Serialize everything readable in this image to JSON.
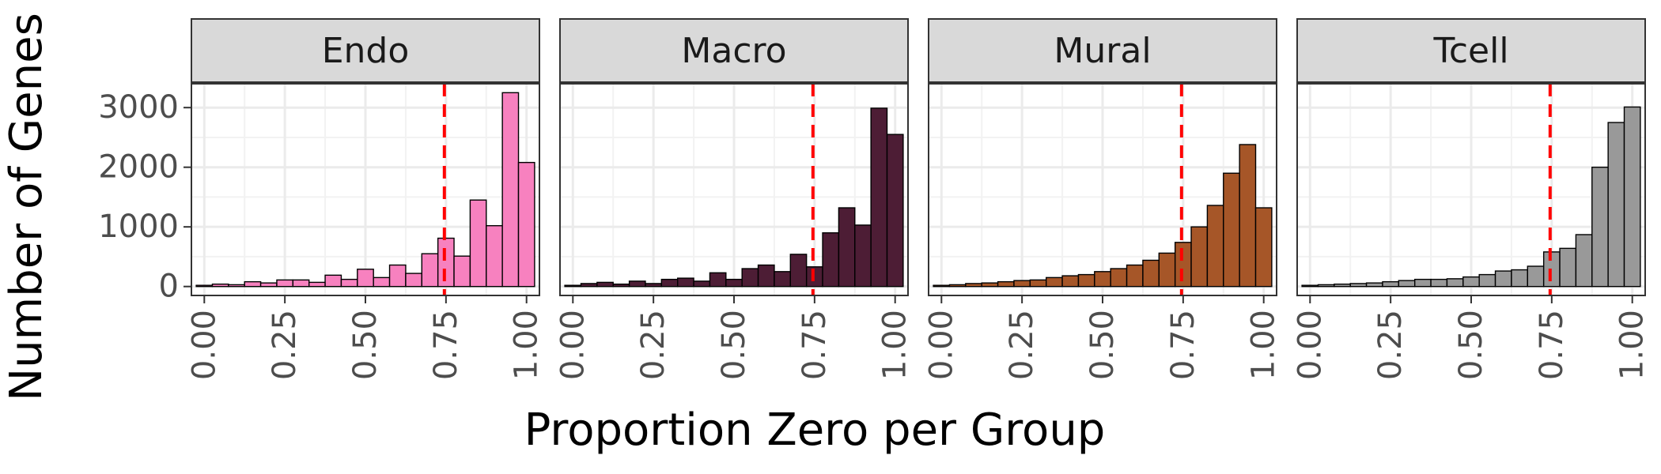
{
  "chart_data": {
    "type": "bar",
    "subtype": "faceted-histogram",
    "xlabel": "Proportion Zero per Group",
    "ylabel": "Number of Genes",
    "x_ticks": [
      "0.00",
      "0.25",
      "0.50",
      "0.75",
      "1.00"
    ],
    "y_ticks": [
      "0",
      "1000",
      "2000",
      "3000"
    ],
    "xlim": [
      -0.04,
      1.04
    ],
    "ylim": [
      -150,
      3400
    ],
    "bin_width": 0.05,
    "bin_centers": [
      0.0,
      0.05,
      0.1,
      0.15,
      0.2,
      0.25,
      0.3,
      0.35,
      0.4,
      0.45,
      0.5,
      0.55,
      0.6,
      0.65,
      0.7,
      0.75,
      0.8,
      0.85,
      0.9,
      0.95,
      1.0
    ],
    "threshold_line": {
      "x": 0.745,
      "color": "#ff0000",
      "style": "dashed"
    },
    "grid": true,
    "legend": "none",
    "panels": [
      {
        "name": "Endo",
        "color": "#f781bf",
        "values": [
          20,
          40,
          30,
          80,
          60,
          110,
          110,
          70,
          190,
          120,
          290,
          150,
          360,
          220,
          550,
          810,
          510,
          1450,
          1020,
          3250,
          2080
        ]
      },
      {
        "name": "Macro",
        "color": "#4d1d35",
        "values": [
          20,
          50,
          70,
          40,
          90,
          50,
          120,
          140,
          90,
          230,
          120,
          300,
          360,
          250,
          540,
          330,
          900,
          1320,
          1030,
          2990,
          2550
        ]
      },
      {
        "name": "Mural",
        "color": "#a65628",
        "values": [
          20,
          30,
          50,
          60,
          80,
          100,
          110,
          150,
          180,
          200,
          250,
          300,
          360,
          440,
          560,
          740,
          1000,
          1360,
          1900,
          2380,
          1320
        ]
      },
      {
        "name": "Tcell",
        "color": "#999999",
        "values": [
          20,
          30,
          40,
          50,
          60,
          80,
          100,
          120,
          120,
          130,
          160,
          200,
          260,
          280,
          340,
          580,
          640,
          870,
          2000,
          2750,
          3010
        ]
      }
    ]
  }
}
